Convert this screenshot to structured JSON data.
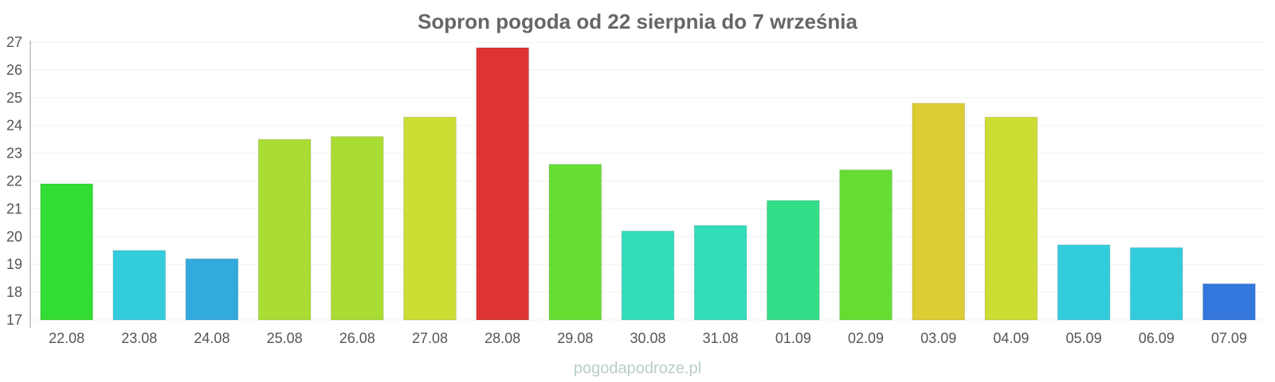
{
  "chart_data": {
    "type": "bar",
    "title": "Sopron pogoda od 22 sierpnia do 7 września",
    "categories": [
      "22.08",
      "23.08",
      "24.08",
      "25.08",
      "26.08",
      "27.08",
      "28.08",
      "29.08",
      "30.08",
      "31.08",
      "01.09",
      "02.09",
      "03.09",
      "04.09",
      "05.09",
      "06.09",
      "07.09"
    ],
    "values": [
      21.9,
      19.5,
      19.2,
      23.5,
      23.6,
      24.3,
      26.8,
      22.6,
      20.2,
      20.4,
      21.3,
      22.4,
      24.8,
      24.3,
      19.7,
      19.6,
      18.3
    ],
    "colors": [
      "#33dd33",
      "#33ccdd",
      "#33aadd",
      "#aadd33",
      "#aadd33",
      "#ccdd33",
      "#dd3333",
      "#66dd33",
      "#33ddbb",
      "#33ddbb",
      "#33dd88",
      "#66dd33",
      "#ddcc33",
      "#ccdd33",
      "#33ccdd",
      "#33ccdd",
      "#3377dd"
    ],
    "ylim": [
      17,
      27
    ],
    "yticks": [
      17,
      18,
      19,
      20,
      21,
      22,
      23,
      24,
      25,
      26,
      27
    ],
    "grid": true,
    "legend": "none"
  },
  "watermark": "pogodapodroze.pl"
}
